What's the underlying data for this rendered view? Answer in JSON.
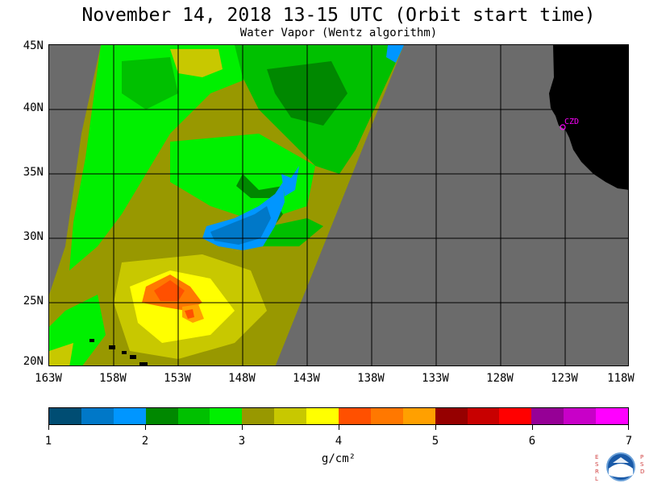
{
  "header": {
    "title": "November 14, 2018  13-15 UTC  (Orbit start time)",
    "subtitle": "Water Vapor (Wentz algorithm)"
  },
  "map": {
    "lat_labels": [
      "45N",
      "40N",
      "35N",
      "30N",
      "25N",
      "20N"
    ],
    "lon_labels": [
      "163W",
      "158W",
      "153W",
      "148W",
      "143W",
      "138W",
      "133W",
      "128W",
      "123W",
      "118W"
    ],
    "station": "CZD",
    "colors": {
      "no_data": "#6b6b6b",
      "land": "#000000",
      "grid": "#000000",
      "station_marker": "#ff00ff"
    }
  },
  "colorbar": {
    "colors": [
      "#004d73",
      "#0078c8",
      "#0096ff",
      "#008800",
      "#00c000",
      "#00f000",
      "#989800",
      "#c8c800",
      "#ffff00",
      "#ff5000",
      "#ff7800",
      "#ffa000",
      "#960000",
      "#c80000",
      "#ff0000",
      "#960096",
      "#c800c8",
      "#ff00ff"
    ],
    "tick_labels": [
      "1",
      "2",
      "3",
      "4",
      "5",
      "6",
      "7"
    ],
    "units": "g/cm²"
  },
  "logo": {
    "icon": "noaa-logo-icon",
    "left_text": "ESRL",
    "right_text": "PSD"
  }
}
